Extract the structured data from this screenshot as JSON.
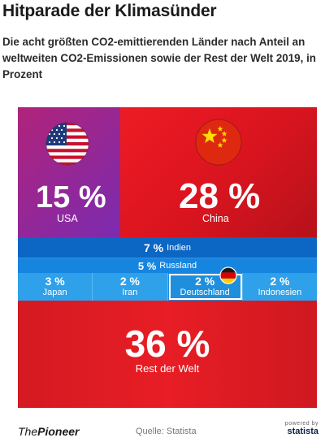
{
  "title": "Hitparade der Klimasünder",
  "subtitle": "Die acht größten CO2-emittierenden Länder nach Anteil an weltweiten CO2-Emissionen sowie der Rest der Welt 2019, in Prozent",
  "chart_data": {
    "type": "treemap",
    "unit": "%",
    "year": 2019,
    "categories": [
      "USA",
      "China",
      "Indien",
      "Russland",
      "Japan",
      "Iran",
      "Deutschland",
      "Indonesien",
      "Rest der Welt"
    ],
    "values": [
      15,
      28,
      7,
      5,
      3,
      2,
      2,
      2,
      36
    ],
    "labels": [
      "15 %",
      "28 %",
      "7 %",
      "5 %",
      "3 %",
      "2 %",
      "2 %",
      "2 %",
      "36 %"
    ],
    "highlight": "Deutschland",
    "colors": {
      "USA": "#8a2aa6",
      "China": "#e41c24",
      "Indien": "#0c66c4",
      "Russland": "#1585df",
      "small": "#2ea1ea",
      "Rest der Welt": "#e01c24"
    }
  },
  "flags": {
    "usa": "us-flag-icon",
    "china": "china-flag-icon",
    "germany": "germany-flag-icon"
  },
  "footer": {
    "brand_prefix": "The",
    "brand_name": "Pioneer",
    "source": "Quelle: Statista",
    "statista_powered": "powered by",
    "statista_name": "statista"
  }
}
